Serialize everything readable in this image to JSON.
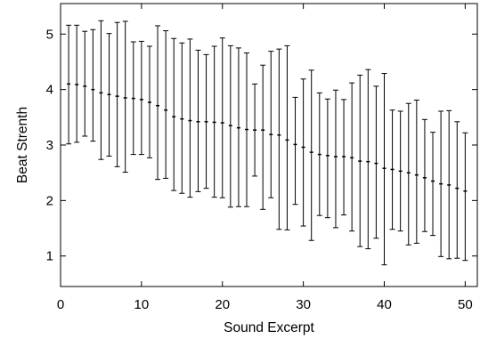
{
  "chart_data": {
    "type": "scatter",
    "title": "",
    "xlabel": "Sound Excerpt",
    "ylabel": "Beat Strenth",
    "xlim": [
      0,
      51.5
    ],
    "ylim": [
      0.45,
      5.55
    ],
    "xticks": [
      0,
      10,
      20,
      30,
      40,
      50
    ],
    "yticks": [
      1,
      2,
      3,
      4,
      5
    ],
    "grid": false,
    "legend": "none",
    "mark_color": "#000000",
    "series": [
      {
        "x": [
          1,
          2,
          3,
          4,
          5,
          6,
          7,
          8,
          9,
          10,
          11,
          12,
          13,
          14,
          15,
          16,
          17,
          18,
          19,
          20,
          21,
          22,
          23,
          24,
          25,
          26,
          27,
          28,
          29,
          30,
          31,
          32,
          33,
          34,
          35,
          36,
          37,
          38,
          39,
          40,
          41,
          42,
          43,
          44,
          45,
          46,
          47,
          48,
          49,
          50
        ],
        "y": [
          4.1,
          4.09,
          4.06,
          4.0,
          3.94,
          3.91,
          3.88,
          3.85,
          3.84,
          3.82,
          3.77,
          3.71,
          3.63,
          3.51,
          3.47,
          3.44,
          3.42,
          3.42,
          3.41,
          3.4,
          3.35,
          3.31,
          3.28,
          3.27,
          3.27,
          3.19,
          3.18,
          3.09,
          3.01,
          2.96,
          2.87,
          2.83,
          2.81,
          2.79,
          2.79,
          2.77,
          2.71,
          2.7,
          2.67,
          2.58,
          2.56,
          2.53,
          2.5,
          2.46,
          2.41,
          2.35,
          2.3,
          2.28,
          2.22,
          2.17
        ],
        "y_high": [
          5.16,
          5.16,
          5.05,
          5.08,
          5.24,
          5.01,
          5.21,
          5.23,
          4.86,
          4.87,
          4.78,
          5.15,
          5.06,
          4.92,
          4.84,
          4.91,
          4.71,
          4.63,
          4.78,
          4.93,
          4.79,
          4.75,
          4.66,
          4.1,
          4.44,
          4.69,
          4.73,
          4.79,
          3.86,
          4.19,
          4.35,
          3.94,
          3.83,
          3.99,
          3.82,
          4.12,
          4.26,
          4.36,
          4.06,
          4.29,
          3.63,
          3.61,
          3.75,
          3.81,
          3.46,
          3.23,
          3.61,
          3.62,
          3.42,
          3.22
        ],
        "y_low": [
          3.02,
          3.05,
          3.16,
          3.07,
          2.74,
          2.8,
          2.61,
          2.51,
          2.83,
          2.83,
          2.77,
          2.38,
          2.4,
          2.18,
          2.13,
          2.06,
          2.16,
          2.22,
          2.06,
          2.05,
          1.88,
          1.89,
          1.89,
          2.44,
          1.84,
          2.05,
          1.48,
          1.47,
          1.93,
          1.54,
          1.28,
          1.73,
          1.69,
          1.51,
          1.74,
          1.45,
          1.17,
          1.13,
          1.32,
          0.84,
          1.48,
          1.45,
          1.2,
          1.23,
          1.44,
          1.37,
          0.99,
          0.95,
          0.96,
          0.92
        ]
      }
    ]
  }
}
